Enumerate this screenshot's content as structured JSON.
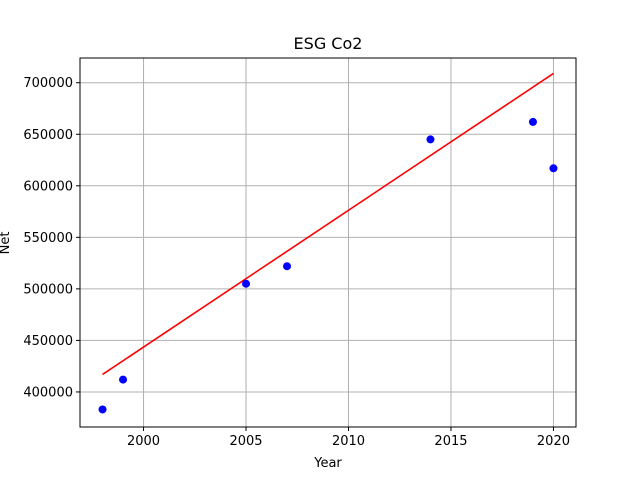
{
  "chart_data": {
    "type": "scatter",
    "title": "ESG Co2",
    "xlabel": "Year",
    "ylabel": "Net",
    "xlim": [
      1996.9,
      2021.1
    ],
    "ylim": [
      366000,
      724000
    ],
    "x_ticks": [
      2000,
      2005,
      2010,
      2015,
      2020
    ],
    "y_ticks": [
      400000,
      450000,
      500000,
      550000,
      600000,
      650000,
      700000
    ],
    "grid": true,
    "points": [
      {
        "x": 1998,
        "y": 383000
      },
      {
        "x": 1999,
        "y": 412000
      },
      {
        "x": 2005,
        "y": 505000
      },
      {
        "x": 2007,
        "y": 522000
      },
      {
        "x": 2014,
        "y": 645000
      },
      {
        "x": 2019,
        "y": 662000
      },
      {
        "x": 2020,
        "y": 617000
      }
    ],
    "trendline": {
      "x": [
        1998,
        2020
      ],
      "y": [
        417000,
        709000
      ]
    },
    "colors": {
      "points": "#0000ff",
      "trendline": "#ff0000",
      "grid": "#b0b0b0"
    }
  }
}
